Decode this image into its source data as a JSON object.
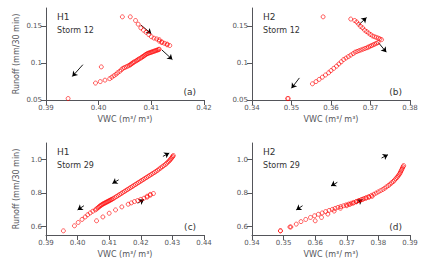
{
  "chart_data": [
    {
      "type": "scatter",
      "color": "#FF0000",
      "marker": "open_circle",
      "grid": false,
      "annotations": [
        "H1",
        "Storm 12",
        "(a)"
      ],
      "xlabel": "VWC (m³/ m³)",
      "ylabel": "Runoff (mm/30 min)",
      "xlim": [
        0.39,
        0.42
      ],
      "ylim": [
        0.05,
        0.175
      ],
      "xticks": [
        0.39,
        {
          "value": 0.4,
          "label": "0.40"
        },
        0.41,
        0.42
      ],
      "yticks": [
        0.05,
        0.1,
        0.15
      ],
      "series": [
        {
          "x": [
            0.3942,
            0.3994,
            0.4003,
            0.4012,
            0.4021,
            0.4025,
            0.4029,
            0.4033,
            0.4036,
            0.404,
            0.4043,
            0.4046,
            0.4049,
            0.4052,
            0.4055,
            0.4058,
            0.406,
            0.4062,
            0.4064,
            0.4066,
            0.4068,
            0.4071,
            0.4073,
            0.4075,
            0.4077,
            0.408,
            0.4082,
            0.4084,
            0.4086,
            0.4088,
            0.409,
            0.4092,
            0.4094,
            0.4096,
            0.4098,
            0.41,
            0.4102,
            0.4104,
            0.4106,
            0.4108,
            0.411,
            0.4112,
            0.4114,
            0.4115
          ],
          "values": [
            0.052,
            0.073,
            0.075,
            0.077,
            0.079,
            0.081,
            0.083,
            0.085,
            0.087,
            0.089,
            0.091,
            0.093,
            0.094,
            0.095,
            0.096,
            0.097,
            0.098,
            0.099,
            0.1,
            0.101,
            0.102,
            0.103,
            0.104,
            0.105,
            0.106,
            0.107,
            0.108,
            0.109,
            0.11,
            0.111,
            0.112,
            0.113,
            0.1135,
            0.114,
            0.1145,
            0.115,
            0.1155,
            0.116,
            0.1165,
            0.117,
            0.1175,
            0.118,
            0.1185,
            0.119
          ]
        },
        {
          "x": [
            0.406,
            0.407,
            0.4075,
            0.408,
            0.4085,
            0.409,
            0.4095,
            0.41,
            0.4105,
            0.411,
            0.4115,
            0.4115,
            0.412,
            0.412,
            0.4125,
            0.413,
            0.413,
            0.4135
          ],
          "values": [
            0.163,
            0.158,
            0.153,
            0.148,
            0.145,
            0.142,
            0.139,
            0.136,
            0.134,
            0.133,
            0.132,
            0.13,
            0.129,
            0.128,
            0.127,
            0.126,
            0.125,
            0.124
          ]
        },
        {
          "x": [
            0.4005,
            0.4045
          ],
          "values": [
            0.095,
            0.163
          ]
        },
        {
          "type": "arrow",
          "color": "#000000",
          "arrows": [
            {
              "x1": 0.397,
              "y1": 0.098,
              "x2": 0.395,
              "y2": 0.082
            },
            {
              "x1": 0.408,
              "y1": 0.152,
              "x2": 0.41,
              "y2": 0.14
            },
            {
              "x1": 0.412,
              "y1": 0.118,
              "x2": 0.414,
              "y2": 0.105
            }
          ]
        }
      ]
    },
    {
      "type": "scatter",
      "color": "#FF0000",
      "marker": "open_circle",
      "grid": false,
      "annotations": [
        "H2",
        "Storm 12",
        "(b)"
      ],
      "xlabel": "VWC (m³/ m³)",
      "xlim": [
        0.34,
        0.38
      ],
      "ylim": [
        0.05,
        0.175
      ],
      "xticks": [
        0.34,
        0.35,
        0.36,
        0.37,
        0.38
      ],
      "yticks": [
        0.05,
        0.1,
        0.15
      ],
      "series": [
        {
          "x": [
            0.3492,
            0.3553,
            0.3562,
            0.357,
            0.3578,
            0.3586,
            0.3594,
            0.36,
            0.3607,
            0.3614,
            0.362,
            0.3626,
            0.3632,
            0.3638,
            0.3644,
            0.365,
            0.3656,
            0.3661,
            0.3666,
            0.3671,
            0.3676,
            0.3681,
            0.3686,
            0.3691,
            0.3695,
            0.3699,
            0.3703,
            0.3707,
            0.3711,
            0.3715,
            0.3719
          ],
          "values": [
            0.052,
            0.072,
            0.075,
            0.078,
            0.081,
            0.084,
            0.087,
            0.09,
            0.093,
            0.096,
            0.099,
            0.102,
            0.105,
            0.107,
            0.109,
            0.111,
            0.113,
            0.115,
            0.116,
            0.117,
            0.118,
            0.119,
            0.12,
            0.121,
            0.122,
            0.123,
            0.124,
            0.125,
            0.126,
            0.127,
            0.128
          ]
        },
        {
          "x": [
            0.365,
            0.366,
            0.3665,
            0.367,
            0.3675,
            0.368,
            0.3685,
            0.369,
            0.3695,
            0.37,
            0.3705,
            0.371,
            0.3715,
            0.372,
            0.3724,
            0.3728
          ],
          "values": [
            0.16,
            0.158,
            0.156,
            0.153,
            0.15,
            0.148,
            0.145,
            0.143,
            0.141,
            0.139,
            0.137,
            0.136,
            0.135,
            0.134,
            0.133,
            0.132
          ]
        },
        {
          "x": [
            0.349,
            0.358
          ],
          "values": [
            0.052,
            0.163
          ]
        },
        {
          "type": "arrow",
          "color": "#000000",
          "arrows": [
            {
              "x1": 0.352,
              "y1": 0.08,
              "x2": 0.35,
              "y2": 0.066
            },
            {
              "x1": 0.367,
              "y1": 0.152,
              "x2": 0.369,
              "y2": 0.162
            },
            {
              "x1": 0.372,
              "y1": 0.128,
              "x2": 0.374,
              "y2": 0.115
            }
          ]
        }
      ]
    },
    {
      "type": "scatter",
      "color": "#FF0000",
      "marker": "open_circle",
      "grid": false,
      "annotations": [
        "H1",
        "Storm 29",
        "(c)"
      ],
      "xlabel": "VWC (m³/ m³)",
      "ylabel": "Runoff (mm/30 min)",
      "xlim": [
        0.39,
        0.44
      ],
      "ylim": [
        0.55,
        1.1
      ],
      "xticks": [
        0.39,
        {
          "value": 0.4,
          "label": "0.40"
        },
        0.41,
        0.42,
        0.43,
        0.44
      ],
      "yticks": [
        0.6,
        0.8,
        {
          "value": 1,
          "label": "1.0"
        }
      ],
      "series": [
        {
          "x": [
            0.3955,
            0.399,
            0.4002,
            0.4014,
            0.4024,
            0.4032,
            0.404,
            0.4048,
            0.4056,
            0.406,
            0.4064,
            0.4067,
            0.407,
            0.4073,
            0.4076,
            0.4079,
            0.4082,
            0.4085,
            0.4088,
            0.4091,
            0.4094,
            0.4097,
            0.41,
            0.4103,
            0.4106,
            0.4109,
            0.4113,
            0.4118,
            0.4123,
            0.4128,
            0.4133,
            0.4138,
            0.4143,
            0.4148,
            0.4153,
            0.4158,
            0.4163,
            0.4168,
            0.4173,
            0.4178,
            0.4183,
            0.4188,
            0.4193,
            0.4198,
            0.4203,
            0.4208,
            0.4213,
            0.4218,
            0.4223,
            0.4228,
            0.4233,
            0.4238,
            0.4243,
            0.4248,
            0.4253,
            0.4258,
            0.4263,
            0.4268,
            0.4273,
            0.4278,
            0.4282,
            0.4286,
            0.429,
            0.4293,
            0.4296,
            0.4299,
            0.4301,
            0.4303
          ],
          "values": [
            0.575,
            0.605,
            0.625,
            0.643,
            0.658,
            0.671,
            0.682,
            0.692,
            0.7,
            0.706,
            0.712,
            0.717,
            0.722,
            0.726,
            0.73,
            0.734,
            0.737,
            0.74,
            0.743,
            0.746,
            0.749,
            0.752,
            0.755,
            0.758,
            0.761,
            0.764,
            0.768,
            0.774,
            0.78,
            0.786,
            0.792,
            0.798,
            0.804,
            0.81,
            0.816,
            0.822,
            0.828,
            0.834,
            0.84,
            0.846,
            0.852,
            0.858,
            0.864,
            0.87,
            0.876,
            0.882,
            0.888,
            0.894,
            0.9,
            0.906,
            0.912,
            0.918,
            0.924,
            0.93,
            0.937,
            0.944,
            0.951,
            0.958,
            0.965,
            0.972,
            0.979,
            0.986,
            0.993,
            1.0,
            1.007,
            1.014,
            1.02,
            1.025
          ]
        },
        {
          "x": [
            0.406,
            0.408,
            0.41,
            0.412,
            0.414,
            0.416,
            0.417,
            0.418,
            0.419,
            0.42,
            0.421,
            0.422,
            0.422,
            0.423,
            0.423,
            0.424
          ],
          "values": [
            0.635,
            0.658,
            0.68,
            0.7,
            0.718,
            0.734,
            0.742,
            0.75,
            0.756,
            0.763,
            0.77,
            0.776,
            0.782,
            0.788,
            0.793,
            0.798
          ]
        },
        {
          "type": "arrow",
          "color": "#000000",
          "arrows": [
            {
              "x1": 0.402,
              "y1": 0.725,
              "x2": 0.4,
              "y2": 0.7
            },
            {
              "x1": 0.413,
              "y1": 0.88,
              "x2": 0.411,
              "y2": 0.858
            },
            {
              "x1": 0.419,
              "y1": 0.74,
              "x2": 0.421,
              "y2": 0.762
            },
            {
              "x1": 0.427,
              "y1": 1.02,
              "x2": 0.429,
              "y2": 1.04
            }
          ]
        }
      ]
    },
    {
      "type": "scatter",
      "color": "#FF0000",
      "marker": "open_circle",
      "grid": false,
      "annotations": [
        "H2",
        "Storm 29",
        "(d)"
      ],
      "xlabel": "VWC (m³/ m³)",
      "xlim": [
        0.34,
        0.39
      ],
      "ylim": [
        0.55,
        1.1
      ],
      "xticks": [
        0.34,
        0.35,
        0.36,
        0.37,
        0.38,
        0.39
      ],
      "yticks": [
        0.6,
        0.8,
        {
          "value": 1,
          "label": "1.0"
        }
      ],
      "series": [
        {
          "x": [
            0.349,
            0.3523,
            0.354,
            0.3555,
            0.357,
            0.3585,
            0.3598,
            0.361,
            0.3622,
            0.3633,
            0.3644,
            0.3654,
            0.3663,
            0.3672,
            0.3681,
            0.369,
            0.3698,
            0.3706,
            0.3714,
            0.3722,
            0.373,
            0.3738,
            0.3746,
            0.3754,
            0.3762,
            0.377,
            0.3778,
            0.3786,
            0.3793,
            0.38,
            0.3807,
            0.3814,
            0.382,
            0.3826,
            0.3832,
            0.3837,
            0.3842,
            0.3847,
            0.3851,
            0.3855,
            0.3859,
            0.3862,
            0.3865,
            0.3868,
            0.387,
            0.3872,
            0.3874,
            0.3876,
            0.3878,
            0.388
          ],
          "values": [
            0.575,
            0.598,
            0.615,
            0.63,
            0.643,
            0.655,
            0.665,
            0.674,
            0.682,
            0.69,
            0.697,
            0.703,
            0.709,
            0.715,
            0.72,
            0.725,
            0.73,
            0.735,
            0.74,
            0.745,
            0.75,
            0.756,
            0.762,
            0.768,
            0.774,
            0.78,
            0.787,
            0.794,
            0.801,
            0.808,
            0.815,
            0.822,
            0.83,
            0.838,
            0.846,
            0.854,
            0.862,
            0.87,
            0.878,
            0.886,
            0.894,
            0.902,
            0.91,
            0.918,
            0.926,
            0.934,
            0.942,
            0.95,
            0.958,
            0.965
          ]
        },
        {
          "x": [
            0.36,
            0.362,
            0.364,
            0.366,
            0.368,
            0.37,
            0.371,
            0.372,
            0.373,
            0.374,
            0.375,
            0.376,
            0.377,
            0.378
          ],
          "values": [
            0.635,
            0.655,
            0.675,
            0.693,
            0.71,
            0.725,
            0.733,
            0.74,
            0.748,
            0.755,
            0.762,
            0.769,
            0.775,
            0.781
          ]
        },
        {
          "x": [
            0.349,
            0.352
          ],
          "values": [
            0.575,
            0.598
          ]
        },
        {
          "type": "arrow",
          "color": "#000000",
          "arrows": [
            {
              "x1": 0.356,
              "y1": 0.725,
              "x2": 0.354,
              "y2": 0.7
            },
            {
              "x1": 0.367,
              "y1": 0.865,
              "x2": 0.365,
              "y2": 0.843
            },
            {
              "x1": 0.373,
              "y1": 0.74,
              "x2": 0.375,
              "y2": 0.762
            },
            {
              "x1": 0.381,
              "y1": 1.01,
              "x2": 0.383,
              "y2": 1.03
            }
          ]
        }
      ]
    }
  ]
}
